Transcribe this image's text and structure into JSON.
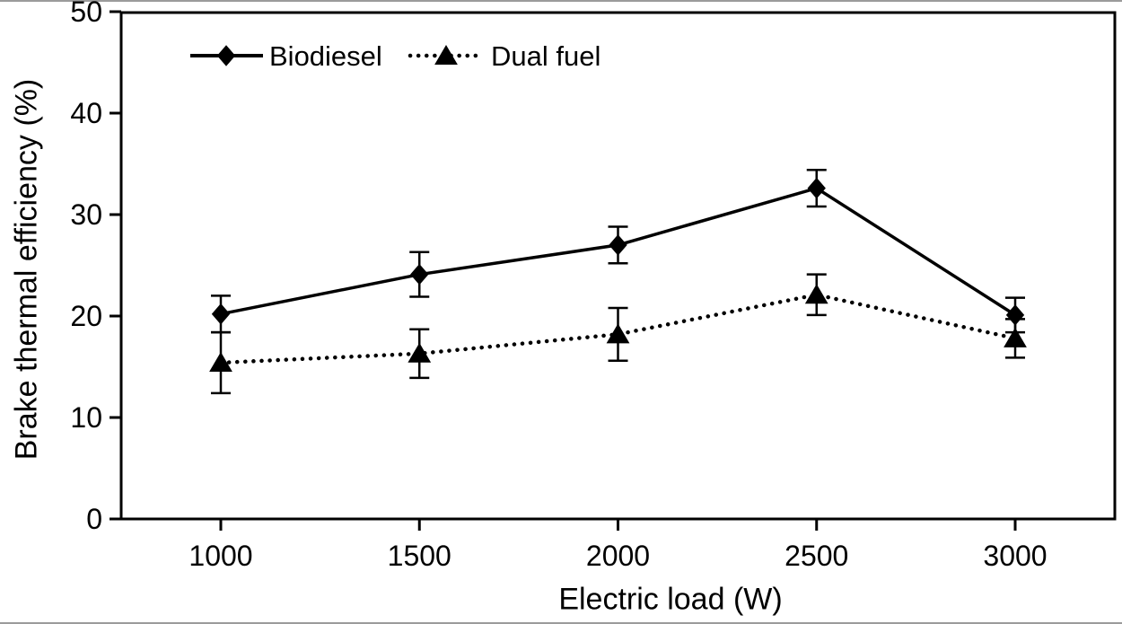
{
  "figure": {
    "background": "#ffffff",
    "edge_color": "#9b9b9b"
  },
  "chart_data": {
    "type": "line",
    "xlabel": "Electric load (W)",
    "ylabel": "Brake thermal efficiency (%)",
    "x": [
      1000,
      1500,
      2000,
      2500,
      3000
    ],
    "xticks": [
      1000,
      1500,
      2000,
      2500,
      3000
    ],
    "yticks": [
      0,
      10,
      20,
      30,
      40,
      50
    ],
    "xlim": [
      750,
      3250
    ],
    "ylim": [
      0,
      50
    ],
    "grid": false,
    "axis_color": "#000000",
    "legend": {
      "position": "top-inside",
      "entries": [
        "Biodiesel",
        "Dual fuel"
      ]
    },
    "series": [
      {
        "name": "Biodiesel",
        "marker": "diamond",
        "line_style": "solid",
        "color": "#000000",
        "values": [
          20.2,
          24.1,
          27.0,
          32.6,
          20.1
        ],
        "error": [
          1.8,
          2.2,
          1.8,
          1.8,
          1.7
        ]
      },
      {
        "name": "Dual fuel",
        "marker": "triangle",
        "line_style": "dotted",
        "color": "#000000",
        "values": [
          15.4,
          16.3,
          18.2,
          22.1,
          17.8
        ],
        "error": [
          3.0,
          2.4,
          2.6,
          2.0,
          1.9
        ]
      }
    ]
  }
}
